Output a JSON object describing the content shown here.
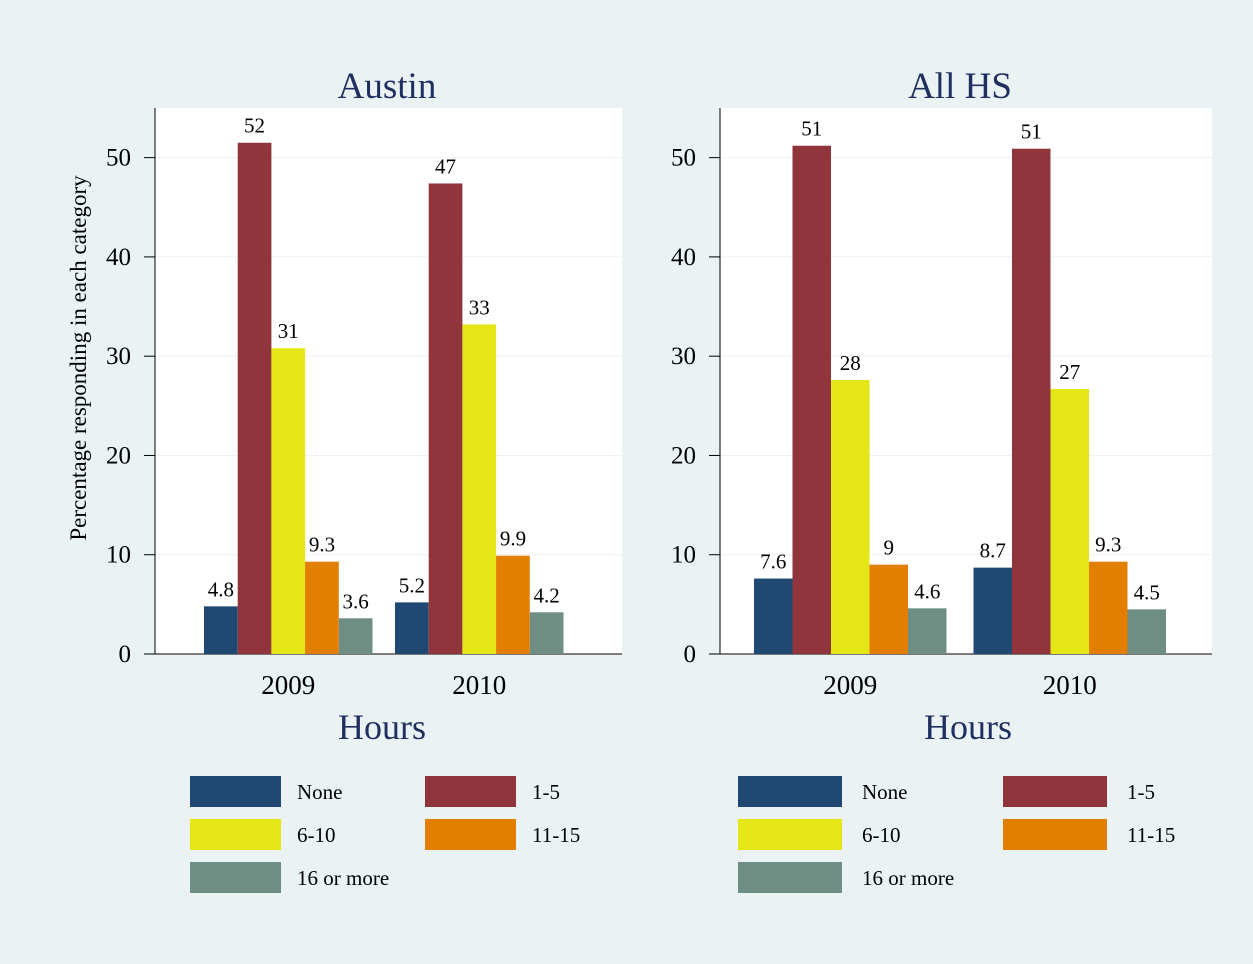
{
  "y_axis_label": "Percentage responding in each category",
  "colors": {
    "None": "#1f4872",
    "1-5": "#90353b",
    "6-10": "#e5e617",
    "11-15": "#e27e00",
    "16 or more": "#6e8e84",
    "title_text": "#1f2f5f",
    "background": "#eaf2f3",
    "plot_background": "#ffffff"
  },
  "chart_data": [
    {
      "type": "bar",
      "title": "Austin",
      "xlabel": "Hours",
      "ylabel": "Percentage responding in each category",
      "categories": [
        "2009",
        "2010"
      ],
      "ylim": [
        0,
        55
      ],
      "yticks": [
        "0",
        "10",
        "20",
        "30",
        "40",
        "50"
      ],
      "grid": true,
      "legend_position": "bottom",
      "series": [
        {
          "name": "None",
          "values": [
            4.8,
            5.2
          ],
          "labels": [
            "4.8",
            "5.2"
          ]
        },
        {
          "name": "1-5",
          "values": [
            51.5,
            47.4
          ],
          "labels": [
            "52",
            "47"
          ]
        },
        {
          "name": "6-10",
          "values": [
            30.8,
            33.2
          ],
          "labels": [
            "31",
            "33"
          ]
        },
        {
          "name": "11-15",
          "values": [
            9.3,
            9.9
          ],
          "labels": [
            "9.3",
            "9.9"
          ]
        },
        {
          "name": "16 or more",
          "values": [
            3.6,
            4.2
          ],
          "labels": [
            "3.6",
            "4.2"
          ]
        }
      ]
    },
    {
      "type": "bar",
      "title": "All HS",
      "xlabel": "Hours",
      "ylabel": "",
      "categories": [
        "2009",
        "2010"
      ],
      "ylim": [
        0,
        55
      ],
      "yticks": [
        "0",
        "10",
        "20",
        "30",
        "40",
        "50"
      ],
      "grid": true,
      "legend_position": "bottom",
      "series": [
        {
          "name": "None",
          "values": [
            7.6,
            8.7
          ],
          "labels": [
            "7.6",
            "8.7"
          ]
        },
        {
          "name": "1-5",
          "values": [
            51.2,
            50.9
          ],
          "labels": [
            "51",
            "51"
          ]
        },
        {
          "name": "6-10",
          "values": [
            27.6,
            26.7
          ],
          "labels": [
            "28",
            "27"
          ]
        },
        {
          "name": "11-15",
          "values": [
            9.0,
            9.3
          ],
          "labels": [
            "9",
            "9.3"
          ]
        },
        {
          "name": "16 or more",
          "values": [
            4.6,
            4.5
          ],
          "labels": [
            "4.6",
            "4.5"
          ]
        }
      ]
    }
  ]
}
